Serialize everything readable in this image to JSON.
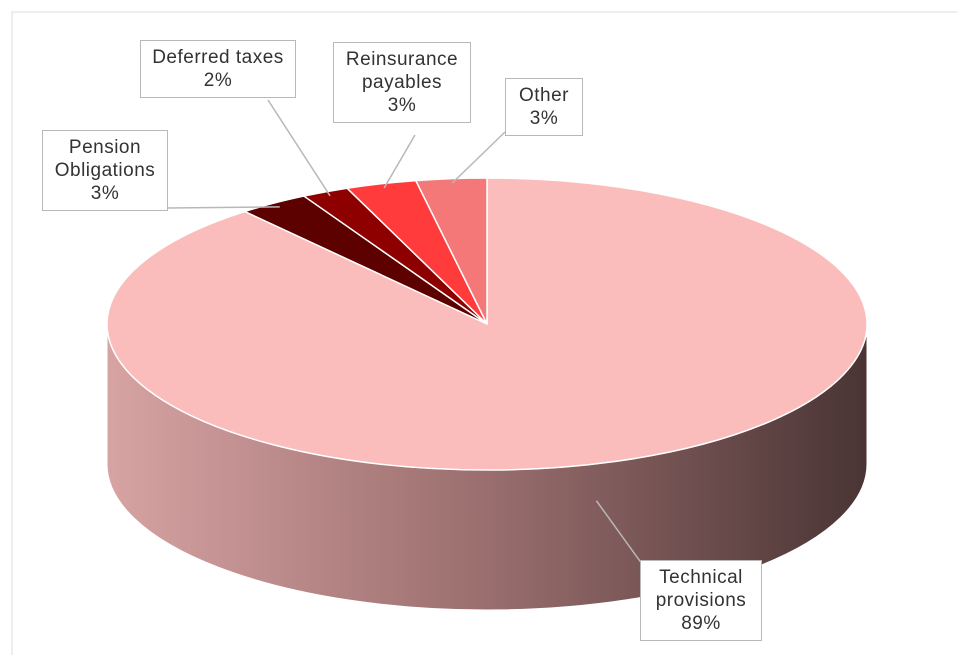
{
  "chart_data": {
    "type": "pie3d",
    "categories": [
      "Technical provisions",
      "Pension Obligations",
      "Deferred taxes",
      "Reinsurance payables",
      "Other"
    ],
    "values": [
      89,
      3,
      2,
      3,
      3
    ],
    "value_labels": [
      "89%",
      "3%",
      "2%",
      "3%",
      "3%"
    ],
    "colors": [
      "#fbbcbc",
      "#5c0000",
      "#8e0000",
      "#ff3b3b",
      "#f47878"
    ]
  }
}
